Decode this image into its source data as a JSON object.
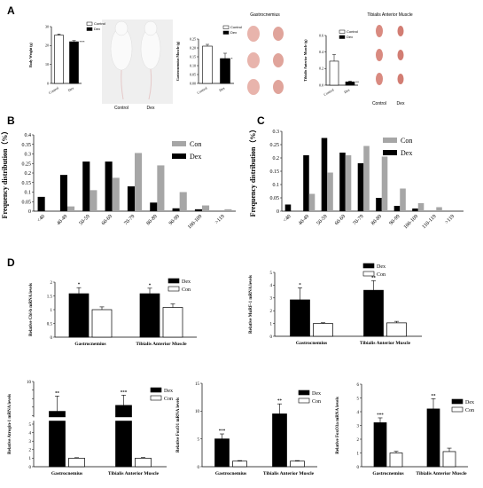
{
  "panels": {
    "A": "A",
    "B": "B",
    "C": "C",
    "D": "D"
  },
  "colors": {
    "dex": "#000000",
    "con_gray": "#a6a6a6",
    "con_white": "#ffffff",
    "axis": "#000000"
  },
  "panel_a": {
    "mouse_photo": {
      "labels": [
        "Control",
        "Dex"
      ]
    },
    "gastro_photo": {
      "title": "Gastrocnemius"
    },
    "ta_photo": {
      "title": "Tibialis Anterior Muscle",
      "labels": [
        "Control",
        "Dex"
      ]
    }
  },
  "chart_data": [
    {
      "id": "a-body-weight",
      "type": "bar",
      "ylabel": "Body Weight (g)",
      "ylim": [
        0,
        30
      ],
      "yticks": [
        "0",
        "10",
        "20",
        "30"
      ],
      "categories": [
        "Control",
        "Dex"
      ],
      "values": [
        25.5,
        22.0
      ],
      "errors": [
        0.6,
        0.6
      ],
      "fills": [
        "#ffffff",
        "#000000"
      ],
      "sig": [
        "",
        "***"
      ],
      "legend": [
        "Control",
        "Dex"
      ]
    },
    {
      "id": "a-gastro-weight",
      "type": "bar",
      "ylabel": "Gastrocnemius Muscle (g)",
      "ylim": [
        0,
        0.25
      ],
      "yticks": [
        "0.00",
        "0.05",
        "0.10",
        "0.15",
        "0.20",
        "0.25"
      ],
      "categories": [
        "Control",
        "Dex"
      ],
      "values": [
        0.21,
        0.14
      ],
      "errors": [
        0.01,
        0.03
      ],
      "fills": [
        "#ffffff",
        "#000000"
      ],
      "sig": [
        "",
        "*"
      ],
      "legend": [
        "Control",
        "Dex"
      ]
    },
    {
      "id": "a-ta-weight",
      "type": "bar",
      "ylabel": "Tibialis Anterior Muscle (g)",
      "ylim": [
        0,
        0.6
      ],
      "yticks": [
        "0.0",
        "0.2",
        "0.4",
        "0.6"
      ],
      "categories": [
        "Control",
        "Dex"
      ],
      "values": [
        0.29,
        0.04
      ],
      "errors": [
        0.08,
        0.01
      ],
      "fills": [
        "#ffffff",
        "#000000"
      ],
      "sig": [
        "",
        "**"
      ],
      "legend": [
        "Control",
        "Dex"
      ]
    },
    {
      "id": "b-gastro-freq",
      "type": "bar",
      "ylabel": "Frequency distribution（%）",
      "ylim": [
        0,
        0.4
      ],
      "yticks": [
        "0",
        "0.05",
        "0.1",
        "0.15",
        "0.2",
        "0.25",
        "0.3",
        "0.35",
        "0.4"
      ],
      "categories": [
        "<40",
        "40-49",
        "50-59",
        "60-69",
        "70-79",
        "80-89",
        "90-99",
        "100-109",
        ">119"
      ],
      "series": [
        {
          "name": "Con",
          "values": [
            0,
            0.025,
            0.11,
            0.175,
            0.305,
            0.24,
            0.1,
            0.03,
            0.01
          ]
        },
        {
          "name": "Dex",
          "values": [
            0.075,
            0.19,
            0.26,
            0.26,
            0.13,
            0.045,
            0.015,
            0.01,
            0
          ]
        }
      ],
      "legend": [
        "Con",
        "Dex"
      ]
    },
    {
      "id": "c-ta-freq",
      "type": "bar",
      "ylabel": "Frequency distribution（%）",
      "ylim": [
        0,
        0.3
      ],
      "yticks": [
        "0",
        "0.05",
        "0.1",
        "0.15",
        "0.2",
        "0.25",
        "0.3"
      ],
      "categories": [
        "<40",
        "40-49",
        "50-59",
        "60-69",
        "70-79",
        "80-89",
        "90-99",
        "100-109",
        "110-119",
        ">119"
      ],
      "series": [
        {
          "name": "Con",
          "values": [
            0,
            0.065,
            0.145,
            0.21,
            0.245,
            0.205,
            0.085,
            0.03,
            0.015,
            0
          ]
        },
        {
          "name": "Dex",
          "values": [
            0.025,
            0.21,
            0.275,
            0.22,
            0.18,
            0.05,
            0.02,
            0.01,
            0,
            0
          ]
        }
      ],
      "legend": [
        "Con",
        "Dex"
      ]
    },
    {
      "id": "d-cbl-b",
      "type": "bar",
      "ylabel": "Relative Cbl-b mRNA levels",
      "ylim": [
        0,
        2
      ],
      "yticks": [
        "0",
        "0.5",
        "1",
        "1.5",
        "2"
      ],
      "categories": [
        "Gastrocnemius",
        "Tibialis Anterior Muscle"
      ],
      "series": [
        {
          "name": "Dex",
          "values": [
            1.58,
            1.58
          ],
          "errors": [
            0.22,
            0.2
          ]
        },
        {
          "name": "Con",
          "values": [
            1.0,
            1.08
          ],
          "errors": [
            0.1,
            0.13
          ]
        }
      ],
      "sig": [
        "*",
        "*"
      ],
      "legend": [
        "Dex",
        "Con"
      ]
    },
    {
      "id": "d-murf1",
      "type": "bar",
      "ylabel": "Relative MuRF-1 mRNA levels",
      "ylim": [
        0,
        5
      ],
      "yticks": [
        "0",
        "1",
        "2",
        "3",
        "4",
        "5"
      ],
      "categories": [
        "Gastrocnemius",
        "Tibialis Anterior Muscle"
      ],
      "series": [
        {
          "name": "Dex",
          "values": [
            2.85,
            3.6
          ],
          "errors": [
            0.95,
            0.75
          ]
        },
        {
          "name": "Con",
          "values": [
            1.0,
            1.05
          ],
          "errors": [
            0.06,
            0.12
          ]
        }
      ],
      "sig": [
        "*",
        "**"
      ],
      "legend": [
        "Dex",
        "Con"
      ]
    },
    {
      "id": "d-atrogin1",
      "type": "bar",
      "ylabel": "Relative Atrogin-1 mRNA levels",
      "ylim": [
        0,
        10
      ],
      "yticks": [
        "0",
        "1",
        "2",
        "3",
        "4",
        "5",
        "",
        "",
        "",
        "",
        "10"
      ],
      "axis_break": [
        5,
        6
      ],
      "categories": [
        "Gastrocnemius",
        "Tibialis Anterior Muscle"
      ],
      "series": [
        {
          "name": "Dex",
          "values": [
            6.5,
            7.2
          ],
          "errors": [
            1.8,
            1.2
          ]
        },
        {
          "name": "Con",
          "values": [
            1.0,
            1.0
          ],
          "errors": [
            0.06,
            0.08
          ]
        }
      ],
      "sig": [
        "**",
        "***"
      ],
      "legend": [
        "Dex",
        "Con"
      ]
    },
    {
      "id": "d-foxo1",
      "type": "bar",
      "ylabel": "Relative FoxO1 mRNA levels",
      "ylim": [
        0,
        15
      ],
      "yticks": [
        "0",
        "5",
        "10",
        "15"
      ],
      "categories": [
        "Gastrocnemius",
        "Tibialis Anterior Muscle"
      ],
      "series": [
        {
          "name": "Dex",
          "values": [
            5.0,
            9.5
          ],
          "errors": [
            0.9,
            1.8
          ]
        },
        {
          "name": "Con",
          "values": [
            1.0,
            1.0
          ],
          "errors": [
            0.1,
            0.1
          ]
        }
      ],
      "sig": [
        "***",
        "**"
      ],
      "legend": [
        "Dex",
        "Con"
      ]
    },
    {
      "id": "d-foxo3a",
      "type": "bar",
      "ylabel": "Relative FoxO3a mRNA levels",
      "ylim": [
        0,
        6
      ],
      "yticks": [
        "0",
        "1",
        "2",
        "3",
        "4",
        "5",
        "6"
      ],
      "categories": [
        "Gastrocnemius",
        "Tibialis Anterior Muscle"
      ],
      "series": [
        {
          "name": "Dex",
          "values": [
            3.2,
            4.2
          ],
          "errors": [
            0.35,
            0.75
          ]
        },
        {
          "name": "Con",
          "values": [
            1.0,
            1.1
          ],
          "errors": [
            0.12,
            0.25
          ]
        }
      ],
      "sig": [
        "***",
        "**"
      ],
      "legend": [
        "Dex",
        "Con"
      ]
    }
  ]
}
